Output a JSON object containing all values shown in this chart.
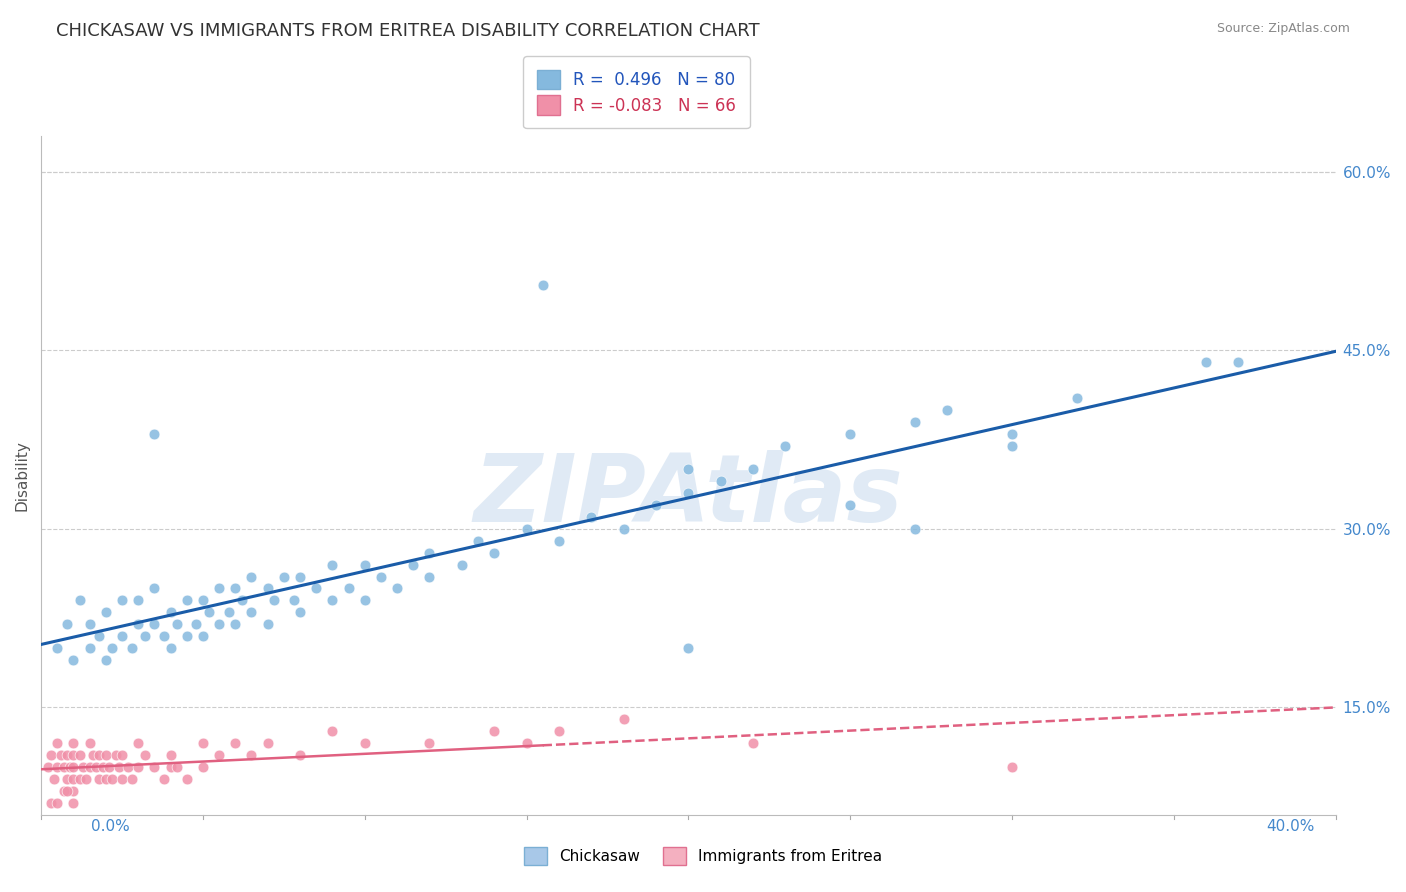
{
  "title": "CHICKASAW VS IMMIGRANTS FROM ERITREA DISABILITY CORRELATION CHART",
  "source_text": "Source: ZipAtlas.com",
  "ylabel_label": "Disability",
  "right_yticks": [
    "60.0%",
    "45.0%",
    "30.0%",
    "15.0%"
  ],
  "right_ytick_vals": [
    0.6,
    0.45,
    0.3,
    0.15
  ],
  "xmin": 0.0,
  "xmax": 0.4,
  "ymin": 0.06,
  "ymax": 0.63,
  "chickasaw_color": "#85b9de",
  "eritrea_color": "#f090a8",
  "trendline_chickasaw_color": "#1a5ca8",
  "trendline_eritrea_color": "#e06080",
  "watermark": "ZIPAtlas",
  "watermark_color": "#ccddef",
  "legend_label_blue": "R =  0.496   N = 80",
  "legend_label_pink": "R = -0.083   N = 66",
  "legend_patch_blue": "#85b9de",
  "legend_patch_pink": "#f090a8",
  "bottom_legend_blue": "Chickasaw",
  "bottom_legend_pink": "Immigrants from Eritrea",
  "chickasaw_x": [
    0.005,
    0.008,
    0.01,
    0.012,
    0.015,
    0.015,
    0.018,
    0.02,
    0.02,
    0.022,
    0.025,
    0.025,
    0.028,
    0.03,
    0.03,
    0.032,
    0.035,
    0.035,
    0.038,
    0.04,
    0.04,
    0.042,
    0.045,
    0.045,
    0.048,
    0.05,
    0.05,
    0.052,
    0.055,
    0.055,
    0.058,
    0.06,
    0.06,
    0.062,
    0.065,
    0.065,
    0.07,
    0.07,
    0.072,
    0.075,
    0.078,
    0.08,
    0.08,
    0.085,
    0.09,
    0.09,
    0.095,
    0.1,
    0.1,
    0.105,
    0.11,
    0.115,
    0.12,
    0.12,
    0.13,
    0.135,
    0.14,
    0.15,
    0.16,
    0.17,
    0.18,
    0.19,
    0.2,
    0.21,
    0.22,
    0.23,
    0.25,
    0.27,
    0.28,
    0.3,
    0.32,
    0.035,
    0.155,
    0.37,
    0.2,
    0.3,
    0.25,
    0.2,
    0.27,
    0.36
  ],
  "chickasaw_y": [
    0.2,
    0.22,
    0.19,
    0.24,
    0.2,
    0.22,
    0.21,
    0.19,
    0.23,
    0.2,
    0.21,
    0.24,
    0.2,
    0.22,
    0.24,
    0.21,
    0.22,
    0.25,
    0.21,
    0.2,
    0.23,
    0.22,
    0.21,
    0.24,
    0.22,
    0.21,
    0.24,
    0.23,
    0.22,
    0.25,
    0.23,
    0.22,
    0.25,
    0.24,
    0.23,
    0.26,
    0.22,
    0.25,
    0.24,
    0.26,
    0.24,
    0.23,
    0.26,
    0.25,
    0.24,
    0.27,
    0.25,
    0.24,
    0.27,
    0.26,
    0.25,
    0.27,
    0.26,
    0.28,
    0.27,
    0.29,
    0.28,
    0.3,
    0.29,
    0.31,
    0.3,
    0.32,
    0.33,
    0.34,
    0.35,
    0.37,
    0.38,
    0.39,
    0.4,
    0.38,
    0.41,
    0.38,
    0.505,
    0.44,
    0.35,
    0.37,
    0.32,
    0.2,
    0.3,
    0.44
  ],
  "eritrea_x": [
    0.002,
    0.003,
    0.004,
    0.005,
    0.005,
    0.006,
    0.007,
    0.008,
    0.008,
    0.009,
    0.01,
    0.01,
    0.01,
    0.01,
    0.01,
    0.012,
    0.012,
    0.013,
    0.014,
    0.015,
    0.015,
    0.016,
    0.017,
    0.018,
    0.018,
    0.019,
    0.02,
    0.02,
    0.021,
    0.022,
    0.023,
    0.024,
    0.025,
    0.025,
    0.027,
    0.028,
    0.03,
    0.03,
    0.032,
    0.035,
    0.038,
    0.04,
    0.04,
    0.042,
    0.045,
    0.05,
    0.05,
    0.055,
    0.06,
    0.065,
    0.07,
    0.08,
    0.09,
    0.1,
    0.12,
    0.14,
    0.15,
    0.16,
    0.18,
    0.22,
    0.3,
    0.003,
    0.005,
    0.007,
    0.008,
    0.01
  ],
  "eritrea_y": [
    0.1,
    0.11,
    0.09,
    0.1,
    0.12,
    0.11,
    0.1,
    0.09,
    0.11,
    0.1,
    0.08,
    0.09,
    0.1,
    0.11,
    0.12,
    0.09,
    0.11,
    0.1,
    0.09,
    0.1,
    0.12,
    0.11,
    0.1,
    0.09,
    0.11,
    0.1,
    0.09,
    0.11,
    0.1,
    0.09,
    0.11,
    0.1,
    0.09,
    0.11,
    0.1,
    0.09,
    0.1,
    0.12,
    0.11,
    0.1,
    0.09,
    0.1,
    0.11,
    0.1,
    0.09,
    0.1,
    0.12,
    0.11,
    0.12,
    0.11,
    0.12,
    0.11,
    0.13,
    0.12,
    0.12,
    0.13,
    0.12,
    0.13,
    0.14,
    0.12,
    0.1,
    0.07,
    0.07,
    0.08,
    0.08,
    0.07
  ]
}
